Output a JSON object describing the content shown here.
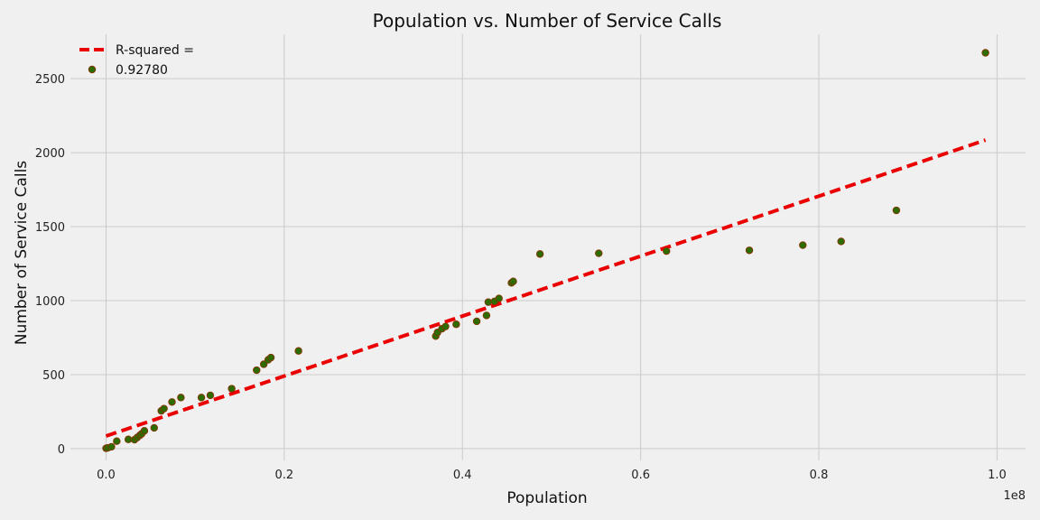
{
  "chart_data": {
    "type": "scatter",
    "title": "Population vs. Number of Service Calls",
    "xlabel": "Population",
    "ylabel": "Number of Service Calls",
    "x_offset_label": "1e8",
    "xlim": [
      -0.04,
      1.032
    ],
    "ylim": [
      -80,
      2800
    ],
    "x_ticks": [
      0.0,
      0.2,
      0.4,
      0.6,
      0.8,
      1.0
    ],
    "x_tick_labels": [
      "0.0",
      "0.2",
      "0.4",
      "0.6",
      "0.8",
      "1.0"
    ],
    "y_ticks": [
      0,
      500,
      1000,
      1500,
      2000,
      2500
    ],
    "y_tick_labels": [
      "0",
      "500",
      "1000",
      "1500",
      "2000",
      "2500"
    ],
    "grid": true,
    "legend": {
      "placement": "top-left",
      "entries": [
        {
          "label": "R-squared =",
          "kind": "line"
        },
        {
          "label": "0.92780",
          "kind": "marker"
        }
      ]
    },
    "series": [
      {
        "kind": "scatter",
        "color": "#2e6b00",
        "edge_color": "#8b2e00",
        "x": [
          0.0,
          0.002,
          0.006,
          0.012,
          0.025,
          0.032,
          0.035,
          0.038,
          0.04,
          0.043,
          0.054,
          0.062,
          0.065,
          0.074,
          0.084,
          0.107,
          0.117,
          0.141,
          0.169,
          0.177,
          0.182,
          0.185,
          0.216,
          0.37,
          0.372,
          0.377,
          0.381,
          0.393,
          0.416,
          0.427,
          0.429,
          0.436,
          0.441,
          0.455,
          0.457,
          0.487,
          0.553,
          0.629,
          0.722,
          0.782,
          0.825,
          0.887,
          0.987
        ],
        "y": [
          2,
          5,
          12,
          50,
          62,
          60,
          75,
          90,
          100,
          120,
          140,
          255,
          270,
          315,
          345,
          345,
          360,
          405,
          530,
          570,
          600,
          615,
          660,
          760,
          785,
          810,
          825,
          840,
          860,
          900,
          990,
          995,
          1015,
          1120,
          1130,
          1315,
          1320,
          1335,
          1340,
          1375,
          1400,
          1610,
          2675
        ]
      },
      {
        "kind": "fit-line",
        "color": "#ea0000",
        "style": "dashed",
        "x": [
          0.0,
          0.987
        ],
        "y": [
          85,
          2085
        ]
      }
    ]
  }
}
